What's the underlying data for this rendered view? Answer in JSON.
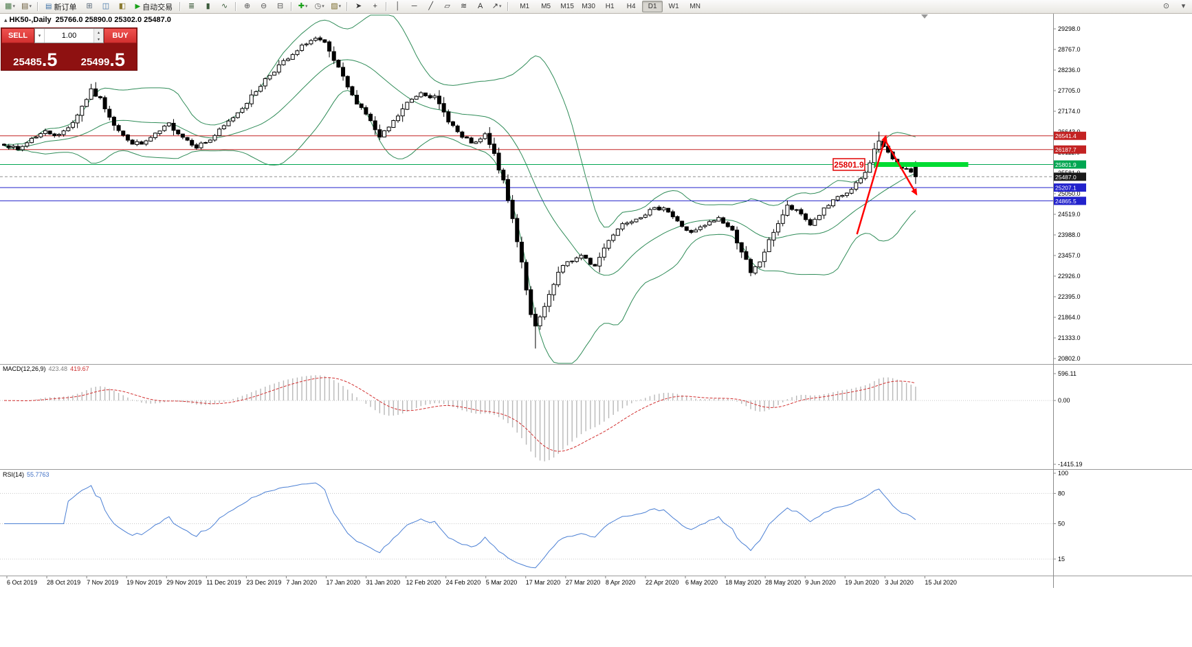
{
  "toolbar": {
    "items": [
      {
        "t": "icon",
        "name": "new-chart",
        "glyph": "▦",
        "color": "#4a7a4a",
        "dd": true
      },
      {
        "t": "icon",
        "name": "profiles",
        "glyph": "▤",
        "color": "#6a5a3a",
        "dd": true
      },
      {
        "t": "sep"
      },
      {
        "t": "btn",
        "name": "new-order",
        "glyph": "▤",
        "glyph_color": "#3a6ea5",
        "label": "新订单"
      },
      {
        "t": "icon",
        "name": "charts-cascade",
        "glyph": "⊞",
        "color": "#5a6a7a"
      },
      {
        "t": "icon",
        "name": "market-watch",
        "glyph": "◫",
        "color": "#3a6ea5"
      },
      {
        "t": "icon",
        "name": "navigator",
        "glyph": "◧",
        "color": "#8a7a30"
      },
      {
        "t": "btn",
        "name": "autotrading",
        "glyph": "▶",
        "glyph_color": "#18a018",
        "label": "自动交易"
      },
      {
        "t": "sep"
      },
      {
        "t": "icon",
        "name": "bars-chart-type",
        "glyph": "≣",
        "color": "#3a5a3a"
      },
      {
        "t": "icon",
        "name": "candles-chart-type",
        "glyph": "▮",
        "color": "#3a5a3a"
      },
      {
        "t": "icon",
        "name": "line-chart-type",
        "glyph": "∿",
        "color": "#3a5a3a"
      },
      {
        "t": "sep"
      },
      {
        "t": "icon",
        "name": "zoom-in",
        "glyph": "⊕",
        "color": "#555555"
      },
      {
        "t": "icon",
        "name": "zoom-out",
        "glyph": "⊖",
        "color": "#555555"
      },
      {
        "t": "icon",
        "name": "tile-windows",
        "glyph": "⊟",
        "color": "#555555"
      },
      {
        "t": "sep"
      },
      {
        "t": "icon",
        "name": "indicators-add",
        "glyph": "✚",
        "color": "#18a018",
        "dd": true
      },
      {
        "t": "icon",
        "name": "periods",
        "glyph": "◷",
        "color": "#555555",
        "dd": true
      },
      {
        "t": "icon",
        "name": "templates",
        "glyph": "▨",
        "color": "#7a6a2a",
        "dd": true
      },
      {
        "t": "sep"
      },
      {
        "t": "icon",
        "name": "cursor",
        "glyph": "➤",
        "color": "#333333"
      },
      {
        "t": "icon",
        "name": "crosshair",
        "glyph": "+",
        "color": "#333333"
      },
      {
        "t": "sep"
      },
      {
        "t": "icon",
        "name": "vertical-line",
        "glyph": "│",
        "color": "#333333"
      },
      {
        "t": "icon",
        "name": "horizontal-line",
        "glyph": "─",
        "color": "#333333"
      },
      {
        "t": "icon",
        "name": "trendline",
        "glyph": "╱",
        "color": "#333333"
      },
      {
        "t": "icon",
        "name": "equidistant-channel",
        "glyph": "▱",
        "color": "#333333"
      },
      {
        "t": "icon",
        "name": "fibonacci",
        "glyph": "≋",
        "color": "#333333"
      },
      {
        "t": "icon",
        "name": "text-label",
        "glyph": "A",
        "color": "#333333"
      },
      {
        "t": "icon",
        "name": "arrows-tool",
        "glyph": "↗",
        "color": "#333333",
        "dd": true
      },
      {
        "t": "sep"
      }
    ],
    "right_items": [
      {
        "name": "search",
        "glyph": "⊙",
        "color": "#555555"
      },
      {
        "name": "more",
        "glyph": "▾",
        "color": "#555555"
      }
    ],
    "timeframes": [
      "M1",
      "M5",
      "M15",
      "M30",
      "H1",
      "H4",
      "D1",
      "W1",
      "MN"
    ],
    "active_timeframe": "D1"
  },
  "chart_header": {
    "window_icon": "▴",
    "symbol_period": "HK50-,Daily",
    "ohlc": "25766.0 25890.0 25302.0 25487.0"
  },
  "trade_panel": {
    "sell_label": "SELL",
    "buy_label": "BUY",
    "volume": "1.00",
    "sell_price_main": "25485",
    "sell_price_frac": ".5",
    "buy_price_main": "25499",
    "buy_price_frac": ".5"
  },
  "chart_data": {
    "type": "candlestick",
    "symbol": "HK50-",
    "timeframe": "Daily",
    "last_candle": {
      "open": 25766.0,
      "high": 25890.0,
      "low": 25302.0,
      "close": 25487.0
    },
    "price_axis_labels": [
      "29298.0",
      "28767.0",
      "28236.0",
      "27705.0",
      "27174.0",
      "26643.0",
      "26112.0",
      "25581.0",
      "25050.0",
      "24519.0",
      "23988.0",
      "23457.0",
      "22926.0",
      "22395.0",
      "21864.0",
      "21333.0",
      "20802.0"
    ],
    "level_lines": [
      {
        "price": 26541.4,
        "label": "26541.4",
        "color": "#c32222",
        "style": "solid"
      },
      {
        "price": 26187.7,
        "label": "26187.7",
        "color": "#c32222",
        "style": "solid"
      },
      {
        "price": 25801.9,
        "label": "25801.9",
        "color": "#00a651",
        "style": "solid"
      },
      {
        "price": 25487.0,
        "label": "25487.0",
        "color": "#909090",
        "label_bg": "#1a1a1a",
        "style": "dash"
      },
      {
        "price": 25207.1,
        "label": "25207.1",
        "color": "#2222cc",
        "style": "solid"
      },
      {
        "price": 24865.5,
        "label": "24865.5",
        "color": "#2222cc",
        "style": "solid"
      }
    ],
    "highlight_bar": {
      "price": 25801.9,
      "x_from_index": 190,
      "x_to_index": 210.5,
      "color": "#00dc32",
      "thickness": 7
    },
    "price_callout": {
      "text": "25801.9",
      "color": "#e00000"
    },
    "trend_arrows": [
      {
        "x1_index": 186.2,
        "price1": 24006,
        "x2_index": 192.5,
        "price2": 26537,
        "color": "#ff0000"
      },
      {
        "x1_index": 192.5,
        "price1": 26395,
        "x2_index": 199.2,
        "price2": 25032,
        "color": "#ff0000"
      }
    ],
    "candles": {
      "count": 200,
      "seed": 7,
      "noise": 110,
      "close_anchors": [
        [
          0,
          26350
        ],
        [
          3,
          26160
        ],
        [
          6,
          26480
        ],
        [
          9,
          26650
        ],
        [
          12,
          26550
        ],
        [
          15,
          26900
        ],
        [
          17,
          27300
        ],
        [
          19,
          27700
        ],
        [
          21,
          27480
        ],
        [
          24,
          26850
        ],
        [
          27,
          26400
        ],
        [
          30,
          26320
        ],
        [
          33,
          26560
        ],
        [
          36,
          26840
        ],
        [
          39,
          26520
        ],
        [
          42,
          26270
        ],
        [
          45,
          26440
        ],
        [
          48,
          26780
        ],
        [
          51,
          27150
        ],
        [
          54,
          27550
        ],
        [
          57,
          28000
        ],
        [
          60,
          28350
        ],
        [
          63,
          28600
        ],
        [
          66,
          28950
        ],
        [
          68,
          29040
        ],
        [
          70,
          28900
        ],
        [
          73,
          28260
        ],
        [
          76,
          27560
        ],
        [
          79,
          27120
        ],
        [
          82,
          26480
        ],
        [
          85,
          26900
        ],
        [
          88,
          27380
        ],
        [
          91,
          27680
        ],
        [
          94,
          27520
        ],
        [
          97,
          26950
        ],
        [
          100,
          26480
        ],
        [
          103,
          26330
        ],
        [
          105,
          26560
        ],
        [
          107,
          26050
        ],
        [
          109,
          25350
        ],
        [
          111,
          24400
        ],
        [
          113,
          23300
        ],
        [
          115,
          21900
        ],
        [
          116,
          21600
        ],
        [
          117,
          21850
        ],
        [
          119,
          22400
        ],
        [
          121,
          23000
        ],
        [
          123,
          23300
        ],
        [
          126,
          23430
        ],
        [
          129,
          23180
        ],
        [
          132,
          23880
        ],
        [
          135,
          24280
        ],
        [
          138,
          24430
        ],
        [
          141,
          24600
        ],
        [
          144,
          24720
        ],
        [
          147,
          24320
        ],
        [
          150,
          24020
        ],
        [
          153,
          24230
        ],
        [
          156,
          24430
        ],
        [
          159,
          24080
        ],
        [
          162,
          23320
        ],
        [
          163,
          22980
        ],
        [
          165,
          23300
        ],
        [
          168,
          24080
        ],
        [
          171,
          24720
        ],
        [
          174,
          24520
        ],
        [
          176,
          24260
        ],
        [
          179,
          24640
        ],
        [
          182,
          24940
        ],
        [
          185,
          25140
        ],
        [
          188,
          25580
        ],
        [
          190,
          26180
        ],
        [
          191,
          26420
        ],
        [
          193,
          26080
        ],
        [
          195,
          25840
        ],
        [
          197,
          25660
        ],
        [
          199,
          25500
        ]
      ],
      "high_overrides": [
        [
          191,
          26650
        ]
      ],
      "low_overrides": [
        [
          116,
          21060
        ]
      ]
    },
    "bollinger": {
      "period": 20,
      "deviation": 2,
      "color": "#2e8b57"
    },
    "macd": {
      "name": "MACD(12,26,9)",
      "value": "423.48",
      "signal": "419.67",
      "axis_labels": [
        "596.11",
        "0.00",
        "-1415.19"
      ],
      "histogram_color": "#b8b8b8",
      "signal_color": "#d23030"
    },
    "rsi": {
      "name": "RSI(14)",
      "value": "55.7763",
      "period": 14,
      "axis_labels": [
        "100",
        "80",
        "50",
        "15"
      ],
      "levels": [
        80,
        50,
        15
      ],
      "color": "#4a7fd4"
    },
    "date_axis": [
      "6 Oct 2019",
      "28 Oct 2019",
      "7 Nov 2019",
      "19 Nov 2019",
      "29 Nov 2019",
      "11 Dec 2019",
      "23 Dec 2019",
      "7 Jan 2020",
      "17 Jan 2020",
      "31 Jan 2020",
      "12 Feb 2020",
      "24 Feb 2020",
      "5 Mar 2020",
      "17 Mar 2020",
      "27 Mar 2020",
      "8 Apr 2020",
      "22 Apr 2020",
      "6 May 2020",
      "18 May 2020",
      "28 May 2020",
      "9 Jun 2020",
      "19 Jun 2020",
      "3 Jul 2020",
      "15 Jul 2020"
    ]
  }
}
